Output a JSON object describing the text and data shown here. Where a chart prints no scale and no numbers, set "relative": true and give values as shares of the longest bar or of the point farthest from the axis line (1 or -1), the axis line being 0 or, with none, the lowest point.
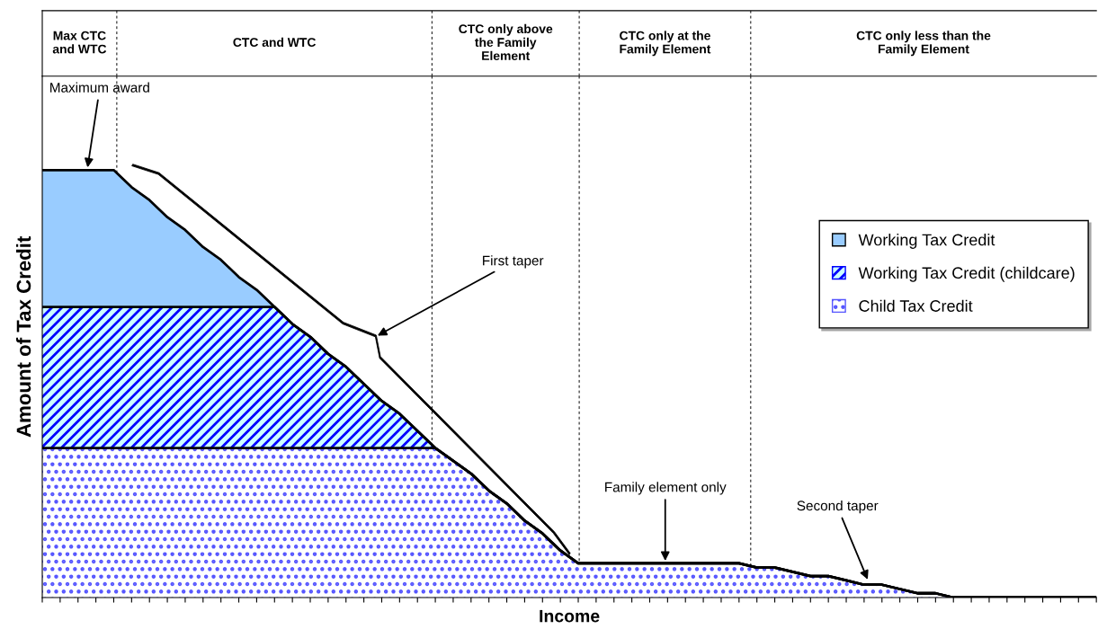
{
  "chart_data": {
    "type": "area",
    "stacked": true,
    "relative": true,
    "xlabel": "Income",
    "ylabel": "Amount of Tax Credit",
    "categories": [
      null,
      null,
      null,
      null,
      null,
      null,
      null,
      null,
      null,
      null,
      null,
      null,
      null,
      null,
      null,
      null,
      null,
      null,
      null,
      null,
      null,
      null,
      null,
      null,
      null,
      null,
      null,
      null,
      null,
      null,
      null,
      null,
      null,
      null,
      null,
      null,
      null,
      null,
      null,
      null,
      null,
      null,
      null,
      null,
      null,
      null,
      null,
      null,
      null,
      null,
      null,
      null,
      null,
      null,
      null,
      null,
      null,
      null,
      null,
      null
    ],
    "series": [
      {
        "name": "Child Tax Credit",
        "color": "#5555ff",
        "values": [
          0.35,
          0.35,
          0.35,
          0.35,
          0.35,
          0.35,
          0.35,
          0.35,
          0.35,
          0.35,
          0.35,
          0.35,
          0.35,
          0.35,
          0.35,
          0.35,
          0.35,
          0.35,
          0.35,
          0.35,
          0.35,
          0.35,
          0.35,
          0.32,
          0.29,
          0.25,
          0.22,
          0.18,
          0.15,
          0.11,
          0.08,
          0.08,
          0.08,
          0.08,
          0.08,
          0.08,
          0.08,
          0.08,
          0.08,
          0.08,
          0.07,
          0.07,
          0.06,
          0.05,
          0.05,
          0.04,
          0.03,
          0.03,
          0.02,
          0.01,
          0.01,
          0,
          0,
          0,
          0,
          0,
          0,
          0,
          0,
          0
        ]
      },
      {
        "name": "Working Tax Credit (childcare)",
        "color": "#0000ff",
        "values": [
          0.33,
          0.33,
          0.33,
          0.33,
          0.33,
          0.33,
          0.33,
          0.33,
          0.33,
          0.33,
          0.33,
          0.33,
          0.33,
          0.33,
          0.29,
          0.26,
          0.22,
          0.19,
          0.15,
          0.11,
          0.08,
          0.04,
          0,
          0,
          0,
          0,
          0,
          0,
          0,
          0,
          0,
          0,
          0,
          0,
          0,
          0,
          0,
          0,
          0,
          0,
          0,
          0,
          0,
          0,
          0,
          0,
          0,
          0,
          0,
          0,
          0,
          0,
          0,
          0,
          0,
          0,
          0,
          0,
          0,
          0
        ]
      },
      {
        "name": "Working Tax Credit",
        "color": "#99ccff",
        "values": [
          0.32,
          0.32,
          0.32,
          0.32,
          0.32,
          0.28,
          0.25,
          0.21,
          0.18,
          0.14,
          0.11,
          0.07,
          0.04,
          0,
          0,
          0,
          0,
          0,
          0,
          0,
          0,
          0,
          0,
          0,
          0,
          0,
          0,
          0,
          0,
          0,
          0,
          0,
          0,
          0,
          0,
          0,
          0,
          0,
          0,
          0,
          0,
          0,
          0,
          0,
          0,
          0,
          0,
          0,
          0,
          0,
          0,
          0,
          0,
          0,
          0,
          0,
          0,
          0,
          0,
          0
        ]
      }
    ],
    "annotations": [
      "Max CTC\nand WTC",
      "CTC and WTC",
      "CTC only above\nthe Family\nElement",
      "CTC only at the\nFamily Element",
      "CTC only less than the\nFamily Element",
      "Maximum award",
      "First taper",
      "Family element only",
      "Second taper"
    ],
    "grid": "x",
    "legend": "right"
  }
}
